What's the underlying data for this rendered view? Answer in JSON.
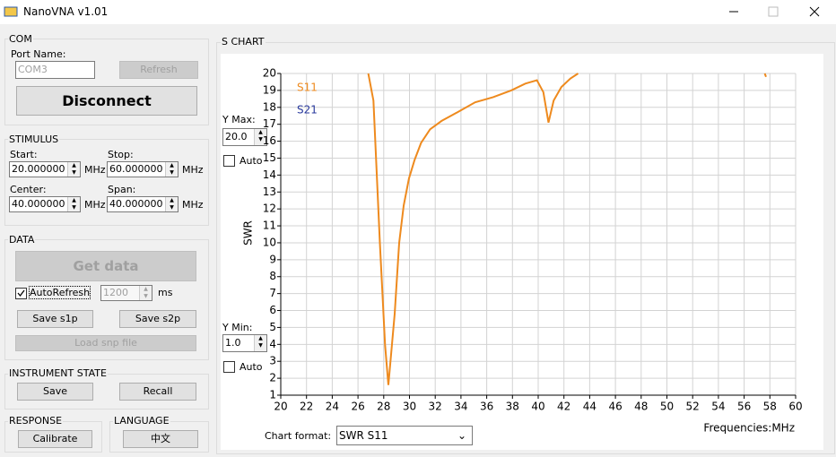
{
  "window": {
    "title": "NanoVNA v1.01"
  },
  "com": {
    "title": "COM",
    "port_label": "Port Name:",
    "port": "COM3",
    "refresh": "Refresh",
    "disconnect": "Disconnect"
  },
  "stimulus": {
    "title": "STIMULUS",
    "fields": [
      {
        "label": "Start:",
        "value": "20.000000",
        "unit": "MHz"
      },
      {
        "label": "Stop:",
        "value": "60.000000",
        "unit": "MHz"
      },
      {
        "label": "Center:",
        "value": "40.000000",
        "unit": "MHz"
      },
      {
        "label": "Span:",
        "value": "40.000000",
        "unit": "MHz"
      }
    ]
  },
  "data": {
    "title": "DATA",
    "get_data": "Get data",
    "auto_refresh": "AutoRefresh",
    "interval": "1200",
    "interval_unit": "ms",
    "save_s1p": "Save s1p",
    "save_s2p": "Save s2p",
    "load": "Load snp file"
  },
  "instrument_state": {
    "title": "INSTRUMENT STATE",
    "save": "Save",
    "recall": "Recall"
  },
  "response": {
    "title": "RESPONSE",
    "calibrate": "Calibrate"
  },
  "language": {
    "title": "LANGUAGE",
    "button": "中文"
  },
  "s_chart": {
    "title": "S CHART",
    "y_max_label": "Y Max:",
    "y_max": "20.0",
    "auto_max": "Auto",
    "y_min_label": "Y Min:",
    "y_min": "1.0",
    "auto_min": "Auto",
    "format_label": "Chart format:",
    "format": "SWR S11"
  },
  "chart_data": {
    "type": "line",
    "ylabel": "SWR",
    "xlabel": "Frequencies:MHz",
    "x": [
      26.8,
      27.2,
      27.7,
      28.1,
      28.36,
      28.85,
      29.2,
      29.55,
      29.96,
      30.4,
      30.9,
      31.6,
      32.5,
      33.7,
      35.1,
      36.5,
      37.9,
      39.0,
      39.9,
      40.4,
      40.8,
      41.2,
      41.8,
      42.5,
      43.1,
      50,
      57.6,
      57.7
    ],
    "series": [
      {
        "name": "S11",
        "color": "#ee8a1e",
        "values": [
          20,
          18.4,
          10,
          4,
          1.6,
          5.8,
          10,
          12.2,
          13.8,
          14.9,
          15.9,
          16.7,
          17.2,
          17.7,
          18.3,
          18.6,
          19.0,
          19.4,
          19.6,
          18.9,
          17.1,
          18.4,
          19.2,
          19.7,
          20,
          null,
          20,
          19.8
        ]
      },
      {
        "name": "S21",
        "color": "#2a3a9e",
        "values": [
          null,
          null,
          null,
          null,
          null,
          null,
          null,
          null,
          null,
          null,
          null,
          null,
          null,
          null,
          null,
          null,
          null,
          null,
          null,
          null,
          null,
          null,
          null,
          null,
          null,
          null,
          null,
          null
        ]
      }
    ],
    "xlim": [
      20,
      60
    ],
    "ylim": [
      1,
      20
    ],
    "xticks": [
      20,
      22,
      24,
      26,
      28,
      30,
      32,
      34,
      36,
      38,
      40,
      42,
      44,
      46,
      48,
      50,
      52,
      54,
      56,
      58,
      60
    ],
    "yticks": [
      1,
      2,
      3,
      4,
      5,
      6,
      7,
      8,
      9,
      10,
      11,
      12,
      13,
      14,
      15,
      16,
      17,
      18,
      19,
      20
    ],
    "grid": true
  }
}
